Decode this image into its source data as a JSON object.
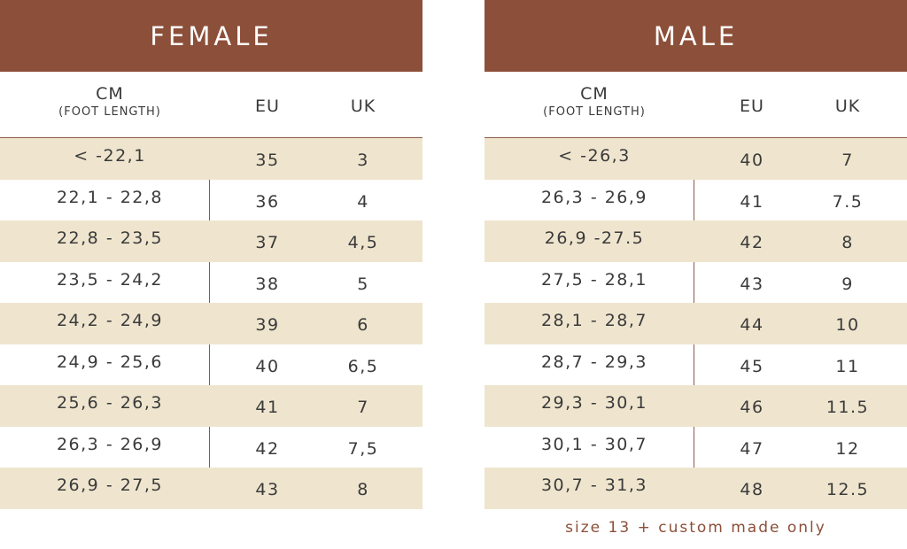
{
  "female": {
    "title": "FEMALE",
    "headers": {
      "cm": "CM",
      "cm_sub": "(FOOT LENGTH)",
      "eu": "EU",
      "uk": "UK"
    },
    "rows": [
      {
        "cm": "< -22,1",
        "eu": "35",
        "uk": "3"
      },
      {
        "cm": "22,1 - 22,8",
        "eu": "36",
        "uk": "4"
      },
      {
        "cm": "22,8 - 23,5",
        "eu": "37",
        "uk": "4,5"
      },
      {
        "cm": "23,5 - 24,2",
        "eu": "38",
        "uk": "5"
      },
      {
        "cm": "24,2 - 24,9",
        "eu": "39",
        "uk": "6"
      },
      {
        "cm": "24,9 - 25,6",
        "eu": "40",
        "uk": "6,5"
      },
      {
        "cm": "25,6 - 26,3",
        "eu": "41",
        "uk": "7"
      },
      {
        "cm": "26,3 - 26,9",
        "eu": "42",
        "uk": "7,5"
      },
      {
        "cm": "26,9 - 27,5",
        "eu": "43",
        "uk": "8"
      }
    ]
  },
  "male": {
    "title": "MALE",
    "headers": {
      "cm": "CM",
      "cm_sub": "(FOOT LENGTH)",
      "eu": "EU",
      "uk": "UK"
    },
    "rows": [
      {
        "cm": "< -26,3",
        "eu": "40",
        "uk": "7"
      },
      {
        "cm": "26,3 - 26,9",
        "eu": "41",
        "uk": "7.5"
      },
      {
        "cm": "26,9 -27.5",
        "eu": "42",
        "uk": "8"
      },
      {
        "cm": "27,5 - 28,1",
        "eu": "43",
        "uk": "9"
      },
      {
        "cm": "28,1 - 28,7",
        "eu": "44",
        "uk": "10"
      },
      {
        "cm": "28,7 - 29,3",
        "eu": "45",
        "uk": "11"
      },
      {
        "cm": "29,3 - 30,1",
        "eu": "46",
        "uk": "11.5"
      },
      {
        "cm": "30,1 - 30,7",
        "eu": "47",
        "uk": "12"
      },
      {
        "cm": "30,7 - 31,3",
        "eu": "48",
        "uk": "12.5"
      }
    ],
    "note": "size 13 + custom made only"
  },
  "colors": {
    "banner": "#8c4f39",
    "shade": "#efe5ce",
    "note": "#8c4f39"
  }
}
